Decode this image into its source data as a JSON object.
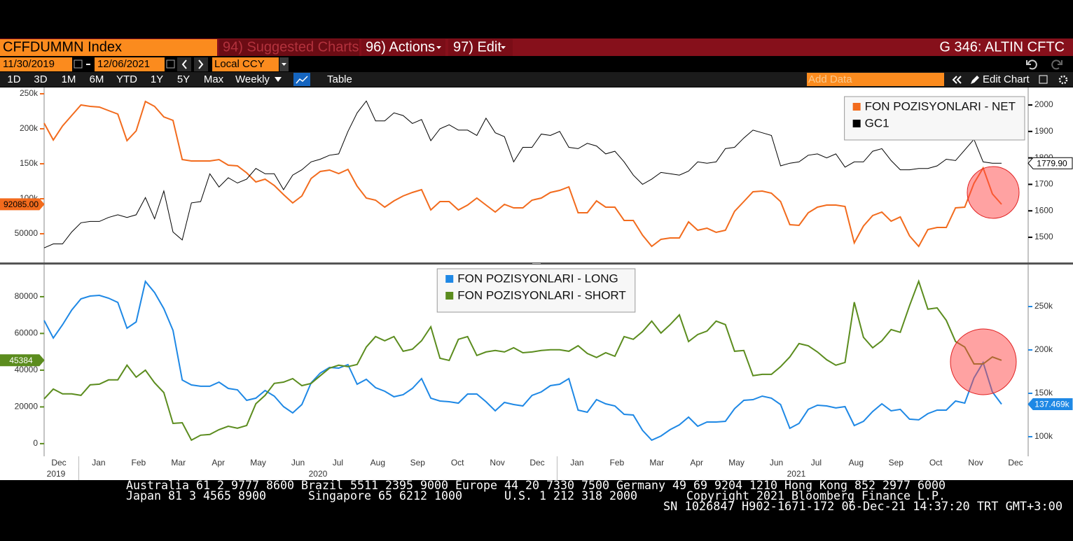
{
  "header": {
    "ticker": "CFFDUMMN Index",
    "suggested": "94) Suggested Charts",
    "actions": "96) Actions",
    "edit": "97) Edit",
    "title": "G 346: ALTIN CFTC"
  },
  "toolbar": {
    "start_date": "11/30/2019",
    "end_date": "12/06/2021",
    "currency": "Local CCY",
    "periods": [
      "1D",
      "3D",
      "1M",
      "6M",
      "YTD",
      "1Y",
      "5Y",
      "Max"
    ],
    "frequency": "Weekly",
    "table": "Table",
    "add_data": "Add Data",
    "edit_chart": "Edit Chart"
  },
  "x_axis": {
    "months": [
      "Dec",
      "Jan",
      "Feb",
      "Mar",
      "Apr",
      "May",
      "Jun",
      "Jul",
      "Aug",
      "Sep",
      "Oct",
      "Nov",
      "Dec",
      "Jan",
      "Feb",
      "Mar",
      "Apr",
      "May",
      "Jun",
      "Jul",
      "Aug",
      "Sep",
      "Oct",
      "Nov",
      "Dec"
    ],
    "years": [
      "2019",
      "2020",
      "2021"
    ]
  },
  "chart_data": [
    {
      "type": "line",
      "legend": "top-right",
      "ylim": [
        9000,
        259000
      ],
      "yticks": [
        {
          "value": 50000,
          "label": "50000"
        },
        {
          "value": 100000,
          "label": "100k"
        },
        {
          "value": 150000,
          "label": "150k"
        },
        {
          "value": 200000,
          "label": "200k"
        },
        {
          "value": 250000,
          "label": "250k"
        }
      ],
      "y2lim": [
        1405,
        2066
      ],
      "y2ticks": [
        1500,
        1600,
        1700,
        1800,
        1900,
        2000
      ],
      "series": [
        {
          "name": "FON POZISYONLARI - NET",
          "color": "#f26b1d",
          "last_label": "92085.00",
          "values": [
            208000,
            184000,
            204000,
            219000,
            234000,
            232000,
            231000,
            226000,
            221000,
            183000,
            197000,
            239000,
            232000,
            217000,
            212000,
            156000,
            154000,
            154000,
            154000,
            156000,
            148000,
            147000,
            137000,
            124000,
            128000,
            119000,
            106000,
            94000,
            104000,
            129000,
            139000,
            141000,
            136000,
            142000,
            118000,
            101000,
            98000,
            88000,
            97000,
            104000,
            109000,
            113000,
            84000,
            96000,
            96000,
            84000,
            91000,
            101000,
            91000,
            81000,
            92000,
            87000,
            87000,
            98000,
            101000,
            109000,
            112000,
            117000,
            80000,
            80000,
            97000,
            88000,
            88000,
            69000,
            69000,
            48000,
            32000,
            42000,
            44000,
            44000,
            67000,
            55000,
            58000,
            52000,
            55000,
            82000,
            96000,
            110000,
            111000,
            108000,
            96000,
            63000,
            62000,
            80000,
            88000,
            91000,
            91000,
            89000,
            37000,
            61000,
            76000,
            81000,
            68000,
            74000,
            47000,
            32000,
            56000,
            59000,
            59000,
            87000,
            88000,
            122000,
            144000,
            107000,
            92085
          ]
        },
        {
          "name": "GC1",
          "color": "#000000",
          "axis": "y2",
          "last_label": "1779.90",
          "values": [
            1460,
            1475,
            1475,
            1520,
            1555,
            1560,
            1560,
            1575,
            1585,
            1575,
            1585,
            1650,
            1570,
            1675,
            1520,
            1490,
            1630,
            1635,
            1740,
            1690,
            1725,
            1705,
            1720,
            1760,
            1740,
            1740,
            1680,
            1735,
            1755,
            1785,
            1795,
            1810,
            1815,
            1900,
            1970,
            2015,
            1940,
            1940,
            1970,
            1960,
            1930,
            1945,
            1865,
            1910,
            1925,
            1905,
            1905,
            1885,
            1950,
            1895,
            1880,
            1785,
            1840,
            1840,
            1890,
            1885,
            1900,
            1840,
            1835,
            1855,
            1845,
            1815,
            1825,
            1785,
            1735,
            1700,
            1720,
            1745,
            1740,
            1735,
            1750,
            1785,
            1780,
            1785,
            1835,
            1840,
            1875,
            1905,
            1895,
            1885,
            1770,
            1780,
            1785,
            1810,
            1815,
            1800,
            1815,
            1765,
            1785,
            1785,
            1825,
            1835,
            1790,
            1755,
            1755,
            1760,
            1760,
            1770,
            1795,
            1790,
            1830,
            1870,
            1785,
            1780,
            1779.9
          ]
        }
      ]
    },
    {
      "type": "line",
      "legend": "top-center",
      "ylim": [
        -6900,
        97500
      ],
      "yticks": [
        0,
        20000,
        40000,
        60000,
        80000
      ],
      "y2lim": [
        77400,
        298400
      ],
      "y2ticks": [
        {
          "value": 100000,
          "label": "100k"
        },
        {
          "value": 150000,
          "label": "150k"
        },
        {
          "value": 200000,
          "label": "200k"
        },
        {
          "value": 250000,
          "label": "250k"
        }
      ],
      "series": [
        {
          "name": "FON POZISYONLARI - LONG",
          "color": "#1e88e5",
          "axis": "y2",
          "last_label": "137.469k",
          "values": [
            234000,
            213700,
            229000,
            246000,
            258900,
            262100,
            262900,
            259700,
            254800,
            225000,
            232300,
            279000,
            266100,
            247600,
            222600,
            165300,
            159700,
            158100,
            158100,
            162900,
            155600,
            154000,
            141900,
            144400,
            153200,
            146800,
            134700,
            127400,
            137100,
            162100,
            173400,
            179800,
            179000,
            183100,
            160500,
            166100,
            156500,
            152400,
            146000,
            148400,
            155600,
            166900,
            144400,
            141100,
            140300,
            138700,
            149200,
            149200,
            140300,
            129800,
            139500,
            137100,
            135500,
            147600,
            151600,
            158900,
            160500,
            166900,
            130600,
            128200,
            142700,
            137900,
            135500,
            125800,
            125000,
            107300,
            96000,
            100800,
            108100,
            113700,
            122600,
            112100,
            116900,
            116900,
            117700,
            132300,
            141900,
            142700,
            146800,
            144400,
            137100,
            109700,
            115300,
            131500,
            136300,
            135500,
            133100,
            134700,
            112900,
            117700,
            129000,
            137900,
            129800,
            131500,
            120200,
            119400,
            126600,
            130600,
            130600,
            141100,
            138700,
            167700,
            185500,
            151600,
            137469
          ]
        },
        {
          "name": "FON POZISYONLARI - SHORT",
          "color": "#5b8c1e",
          "last_label": "45384",
          "values": [
            24400,
            29700,
            27100,
            27100,
            26300,
            32000,
            32400,
            34700,
            34700,
            42700,
            36200,
            40000,
            33100,
            27800,
            11000,
            11400,
            1900,
            4600,
            5000,
            7600,
            9500,
            8400,
            9900,
            21700,
            26300,
            32800,
            33500,
            35400,
            31600,
            32800,
            37000,
            41100,
            42700,
            41900,
            43100,
            52600,
            58300,
            56000,
            58300,
            50300,
            51400,
            56000,
            63600,
            46500,
            45300,
            56800,
            58300,
            48000,
            49900,
            50700,
            49900,
            52200,
            49500,
            49900,
            50700,
            51100,
            51100,
            50300,
            53300,
            49100,
            46900,
            49500,
            47600,
            58300,
            56800,
            61000,
            66700,
            60200,
            64800,
            70100,
            55600,
            59400,
            61300,
            66700,
            64800,
            50300,
            50700,
            37000,
            37700,
            37700,
            41900,
            47200,
            54500,
            53300,
            49900,
            45700,
            42700,
            44200,
            77000,
            57900,
            52200,
            56000,
            62100,
            60600,
            75100,
            88400,
            73200,
            73900,
            67100,
            55600,
            52600,
            43400,
            43400,
            47200,
            45384
          ]
        }
      ]
    }
  ],
  "footer": {
    "line1": "Australia 61 2 9777 8600 Brazil 5511 2395 9000 Europe 44 20 7330 7500 Germany 49 69 9204 1210 Hong Kong 852 2977 6000",
    "japan": "Japan 81 3 4565 8900",
    "singapore": "Singapore 65 6212 1000",
    "us": "U.S. 1 212 318 2000",
    "copyright": "Copyright 2021 Bloomberg Finance L.P.",
    "session": "SN 1026847 H902-1671-172 06-Dec-21 14:37:20 TRT   GMT+3:00"
  }
}
